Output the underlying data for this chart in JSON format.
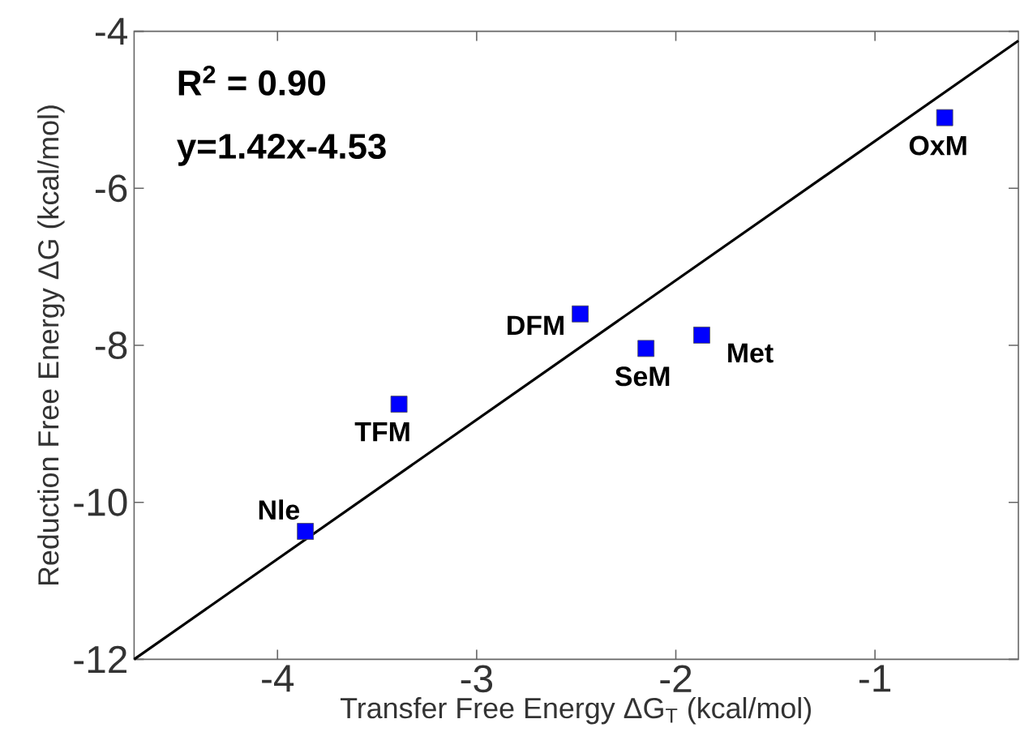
{
  "chart_data": {
    "type": "scatter",
    "xlabel": "Transfer Free Energy ΔG$_{T}$ (kcal/mol)",
    "ylabel": "Reduction Free Energy ΔG (kcal/mol)",
    "xlim": [
      -4.72,
      -0.28
    ],
    "ylim": [
      -12,
      -4
    ],
    "xticks": [
      -4,
      -3,
      -2,
      -1
    ],
    "yticks": [
      -12,
      -10,
      -8,
      -6,
      -4
    ],
    "grid": false,
    "series": [
      {
        "type": "line",
        "color": "#000000",
        "marker": "none",
        "x": [
          -4.72,
          -0.28
        ],
        "values": [
          -12,
          -4.12
        ]
      },
      {
        "color": "#0000ff",
        "marker": "square",
        "x": [
          -3.86,
          -3.39,
          -2.48,
          -2.15,
          -1.87,
          -0.65
        ],
        "values": [
          -10.37,
          -8.75,
          -7.6,
          -8.04,
          -7.87,
          -5.1
        ]
      }
    ],
    "annotations": [
      "**R$^{2}$ = 0.90**",
      "**y=1.42x-4.53**",
      {
        "text": "**Nle**",
        "x": -3.86,
        "y": -10.37
      },
      {
        "text": "**TFM**",
        "x": -3.39,
        "y": -8.75
      },
      {
        "text": "**DFM**",
        "x": -2.48,
        "y": -7.6
      },
      {
        "text": "**SeM**",
        "x": -2.15,
        "y": -8.04
      },
      {
        "text": "**Met**",
        "x": -1.87,
        "y": -7.87
      },
      {
        "text": "**OxM**",
        "x": -0.65,
        "y": -5.1
      }
    ]
  }
}
